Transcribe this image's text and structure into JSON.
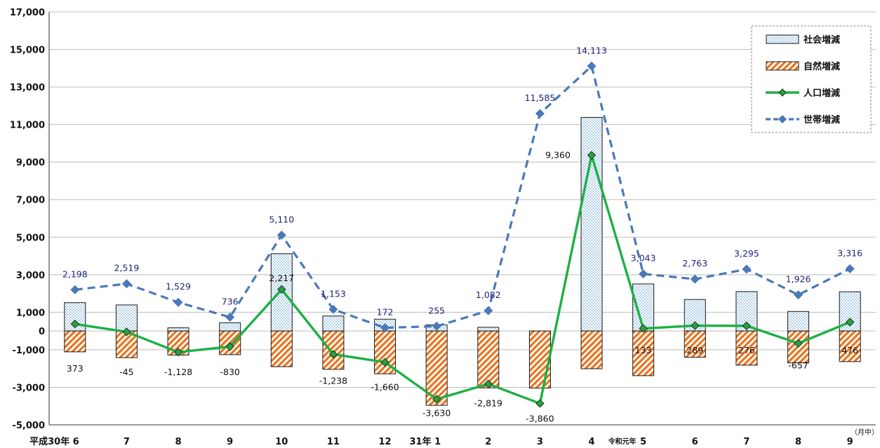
{
  "chart_data": {
    "type": "bar",
    "unit_label": "（月中）",
    "ylim": [
      -5000,
      17000
    ],
    "yticks": [
      17000,
      15000,
      13000,
      11000,
      9000,
      7000,
      5000,
      3000,
      1000,
      0,
      -1000,
      -3000,
      -5000
    ],
    "ytick_labels": [
      "17,000",
      "15,000",
      "13,000",
      "11,000",
      "9,000",
      "7,000",
      "5,000",
      "3,000",
      "1,000",
      "0",
      "-1,000",
      "-3,000",
      "-5,000"
    ],
    "categories": [
      "6",
      "7",
      "8",
      "9",
      "10",
      "11",
      "12",
      "1",
      "2",
      "3",
      "4",
      "5",
      "6",
      "7",
      "8",
      "9"
    ],
    "category_prefixes": [
      {
        "index": 0,
        "text": "平成30年",
        "size": "large"
      },
      {
        "index": 7,
        "text": "31年",
        "size": "large"
      },
      {
        "index": 11,
        "text": "令和元年",
        "size": "small"
      }
    ],
    "grid": true,
    "legend_position": "top-right",
    "series": [
      {
        "name": "社会増減",
        "kind": "bar",
        "color": "#9ec7e6",
        "values": [
          1510,
          1390,
          170,
          440,
          4120,
          800,
          630,
          330,
          200,
          -820,
          11380,
          2510,
          1680,
          2100,
          1040,
          2090
        ]
      },
      {
        "name": "自然増減",
        "kind": "bar",
        "color": "#e8741e",
        "values": [
          -1110,
          -1420,
          -1280,
          -1260,
          -1900,
          -2040,
          -2280,
          -3960,
          -3030,
          -3040,
          -2010,
          -2380,
          -1400,
          -1820,
          -1700,
          -1630
        ]
      },
      {
        "name": "人口増減",
        "kind": "line",
        "color": "#1db045",
        "values": [
          373,
          -45,
          -1128,
          -830,
          2217,
          -1238,
          -1660,
          -3630,
          -2819,
          -3860,
          9360,
          133,
          289,
          276,
          -657,
          476
        ],
        "labels": [
          "373",
          "-45",
          "-1,128",
          "-830",
          "2,217",
          "-1,238",
          "-1,660",
          "-3,630",
          "-2,819",
          "-3,860",
          "9,360",
          "133",
          "289",
          "276",
          "-657",
          "476"
        ]
      },
      {
        "name": "世帯増減",
        "kind": "line",
        "style": "dashed",
        "color": "#4a78b8",
        "values": [
          2198,
          2519,
          1529,
          736,
          5110,
          1153,
          172,
          255,
          1082,
          11585,
          14113,
          3043,
          2763,
          3295,
          1926,
          3316
        ],
        "labels": [
          "2,198",
          "2,519",
          "1,529",
          "736",
          "5,110",
          "1,153",
          "172",
          "255",
          "1,082",
          "11,585",
          "14,113",
          "3,043",
          "2,763",
          "3,295",
          "1,926",
          "3,316"
        ]
      }
    ]
  }
}
